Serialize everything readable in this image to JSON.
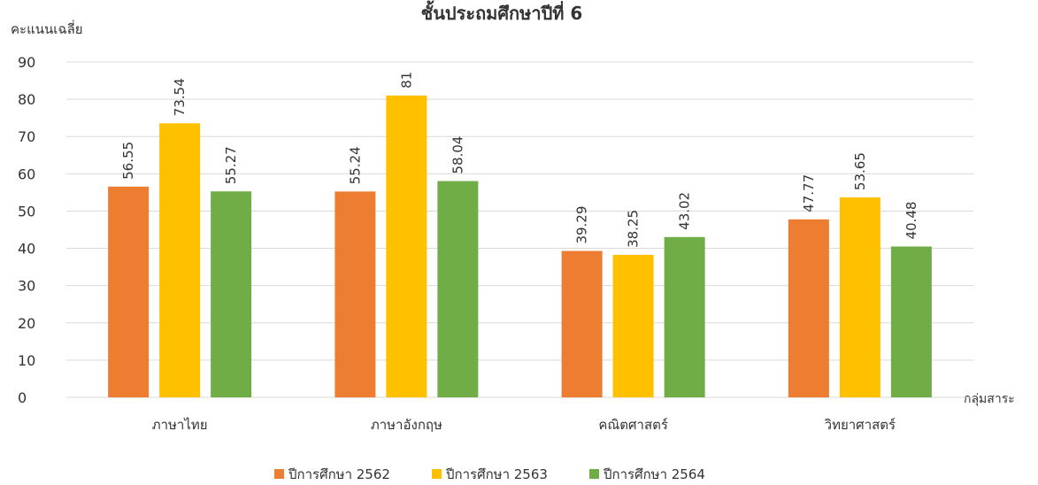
{
  "chart_data": {
    "type": "bar",
    "title": "ชั้นประถมศึกษาปีที่ 6",
    "ylabel": "คะแนนเฉลี่ย",
    "xlabel": "กลุ่มสาระ",
    "ylim": [
      0,
      90
    ],
    "yticks": [
      0,
      10,
      20,
      30,
      40,
      50,
      60,
      70,
      80,
      90
    ],
    "grid": true,
    "legend_position": "bottom",
    "categories": [
      "ภาษาไทย",
      "ภาษาอังกฤษ",
      "คณิตศาสตร์",
      "วิทยาศาสตร์"
    ],
    "series": [
      {
        "name": "ปีการศึกษา 2562",
        "color": "#ed7d31",
        "values": [
          56.55,
          55.24,
          39.29,
          47.77
        ]
      },
      {
        "name": "ปีการศึกษา 2563",
        "color": "#ffc000",
        "values": [
          73.54,
          81,
          38.25,
          53.65
        ]
      },
      {
        "name": "ปีการศึกษา 2564",
        "color": "#70ad47",
        "values": [
          55.27,
          58.04,
          43.02,
          40.48
        ]
      }
    ]
  }
}
